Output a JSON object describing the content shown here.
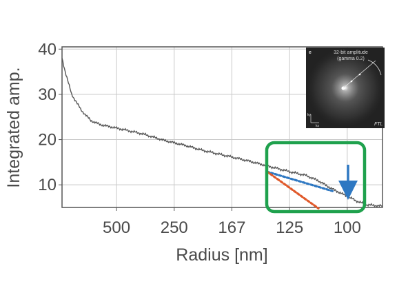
{
  "chart_data": {
    "type": "line",
    "title": "",
    "xlabel": "Radius [nm]",
    "ylabel": "Integrated amp.",
    "x_ticks": [
      "500",
      "250",
      "167",
      "125",
      "100"
    ],
    "y_ticks": [
      10,
      20,
      30,
      40
    ],
    "ylim": [
      5,
      40.5
    ],
    "grid": true,
    "legend": "none",
    "series": [
      {
        "color": "#555555",
        "x": [
          "",
          "",
          "",
          "",
          "",
          "",
          "",
          "",
          "500",
          "",
          "",
          "250",
          "",
          "",
          "167",
          "",
          "",
          "125",
          "",
          "",
          "",
          "100",
          "",
          "",
          ""
        ],
        "points": [
          [
            0.0,
            38.0
          ],
          [
            0.01,
            35.0
          ],
          [
            0.03,
            30.0
          ],
          [
            0.06,
            26.5
          ],
          [
            0.09,
            24.2
          ],
          [
            0.12,
            23.3
          ],
          [
            0.18,
            22.4
          ],
          [
            0.25,
            21.3
          ],
          [
            0.32,
            19.8
          ],
          [
            0.38,
            18.8
          ],
          [
            0.44,
            17.6
          ],
          [
            0.52,
            16.3
          ],
          [
            0.58,
            15.3
          ],
          [
            0.65,
            14.0
          ],
          [
            0.71,
            12.9
          ],
          [
            0.76,
            12.1
          ],
          [
            0.8,
            10.9
          ],
          [
            0.84,
            9.2
          ],
          [
            0.88,
            7.8
          ],
          [
            0.92,
            6.4
          ],
          [
            0.95,
            5.6
          ],
          [
            1.0,
            5.3
          ]
        ]
      }
    ],
    "annotations": {
      "highlight_box_color": "#1fa14d",
      "arrow_color": "#2e78c2",
      "trend_lines": [
        {
          "color": "#2e78c2",
          "style": "dotted",
          "from": [
            0.64,
            12.9
          ],
          "to": [
            0.85,
            8.5
          ]
        },
        {
          "color": "#e0592a",
          "style": "dotted",
          "from": [
            0.64,
            12.9
          ],
          "to": [
            0.8,
            4.8
          ]
        }
      ]
    },
    "inset": {
      "panel_label": "e",
      "title_line1": "32-bit amplitude",
      "title_line2": "(gamma 0.2)",
      "corner_label": "FTL",
      "axis_x": "kx",
      "axis_y": "ky"
    }
  }
}
